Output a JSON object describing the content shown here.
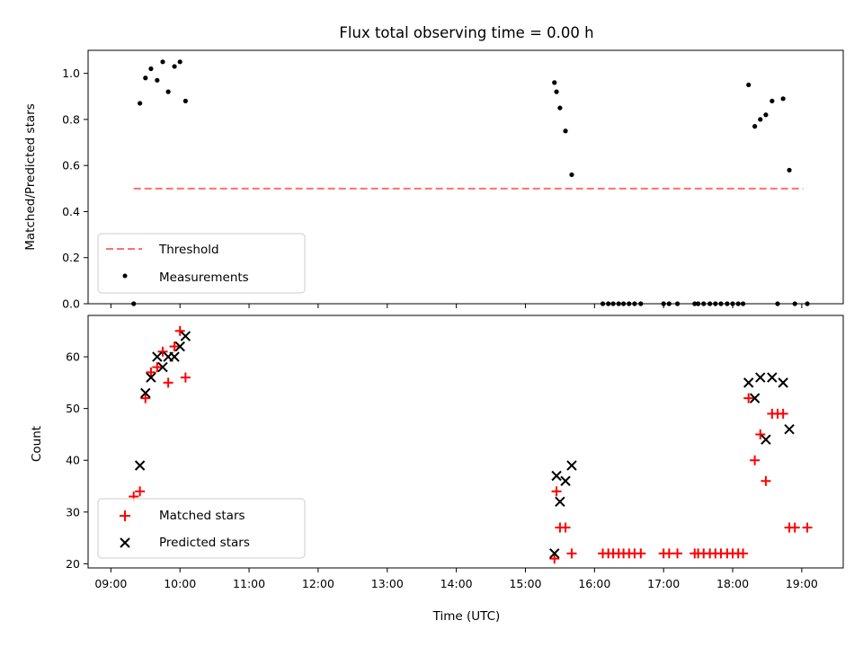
{
  "chart_data": [
    {
      "type": "scatter",
      "title": "Flux total observing time = 0.00 h",
      "ylabel": "Matched/Predicted stars",
      "xlabel": "",
      "xlim": [
        8.67,
        19.6
      ],
      "ylim": [
        0,
        1.1
      ],
      "yticks": [
        0.0,
        0.2,
        0.4,
        0.6,
        0.8,
        1.0
      ],
      "ytick_labels": [
        "0.0",
        "0.2",
        "0.4",
        "0.6",
        "0.8",
        "1.0"
      ],
      "threshold": {
        "name": "Threshold",
        "value": 0.5,
        "x_range": [
          9.33,
          19.02
        ],
        "color": "#ff7070"
      },
      "series": [
        {
          "name": "Measurements",
          "marker": "dot",
          "color": "#000000",
          "x": [
            9.33,
            9.42,
            9.5,
            9.58,
            9.67,
            9.75,
            9.83,
            9.92,
            10.0,
            10.08,
            15.42,
            15.45,
            15.5,
            15.58,
            15.67,
            16.12,
            16.2,
            16.27,
            16.35,
            16.42,
            16.5,
            16.58,
            16.67,
            17.0,
            17.08,
            17.2,
            17.45,
            17.5,
            17.58,
            17.67,
            17.75,
            17.83,
            17.92,
            18.0,
            18.08,
            18.15,
            18.23,
            18.32,
            18.4,
            18.48,
            18.57,
            18.65,
            18.73,
            18.82,
            18.9,
            19.08
          ],
          "y": [
            0.0,
            0.87,
            0.98,
            1.02,
            0.97,
            1.05,
            0.92,
            1.03,
            1.05,
            0.88,
            0.96,
            0.92,
            0.85,
            0.75,
            0.56,
            0.0,
            0.0,
            0.0,
            0.0,
            0.0,
            0.0,
            0.0,
            0.0,
            0.0,
            0.0,
            0.0,
            0.0,
            0.0,
            0.0,
            0.0,
            0.0,
            0.0,
            0.0,
            0.0,
            0.0,
            0.0,
            0.95,
            0.77,
            0.8,
            0.82,
            0.88,
            0.0,
            0.89,
            0.58,
            0.0,
            0.0
          ]
        }
      ]
    },
    {
      "type": "scatter",
      "title": "",
      "ylabel": "Count",
      "xlabel": "Time (UTC)",
      "xlim": [
        8.67,
        19.6
      ],
      "ylim": [
        19.2,
        68
      ],
      "yticks": [
        20,
        30,
        40,
        50,
        60
      ],
      "ytick_labels": [
        "20",
        "30",
        "40",
        "50",
        "60"
      ],
      "xticks": [
        9,
        10,
        11,
        12,
        13,
        14,
        15,
        16,
        17,
        18,
        19
      ],
      "xtick_labels": [
        "09:00",
        "10:00",
        "11:00",
        "12:00",
        "13:00",
        "14:00",
        "15:00",
        "16:00",
        "17:00",
        "18:00",
        "19:00"
      ],
      "series": [
        {
          "name": "Matched stars",
          "marker": "plus",
          "color": "#ff0000",
          "x": [
            9.33,
            9.42,
            9.5,
            9.58,
            9.67,
            9.75,
            9.83,
            9.92,
            10.0,
            10.08,
            15.42,
            15.45,
            15.5,
            15.58,
            15.67,
            16.12,
            16.2,
            16.27,
            16.35,
            16.42,
            16.5,
            16.58,
            16.67,
            17.0,
            17.08,
            17.2,
            17.45,
            17.5,
            17.58,
            17.67,
            17.75,
            17.83,
            17.92,
            18.0,
            18.08,
            18.15,
            18.23,
            18.32,
            18.4,
            18.48,
            18.57,
            18.65,
            18.73,
            18.82,
            18.9,
            19.08
          ],
          "y": [
            33,
            34,
            52,
            57,
            58,
            61,
            55,
            62,
            65,
            56,
            21,
            34,
            27,
            27,
            22,
            22,
            22,
            22,
            22,
            22,
            22,
            22,
            22,
            22,
            22,
            22,
            22,
            22,
            22,
            22,
            22,
            22,
            22,
            22,
            22,
            22,
            52,
            40,
            45,
            36,
            49,
            49,
            49,
            27,
            27,
            27
          ]
        },
        {
          "name": "Predicted stars",
          "marker": "x",
          "color": "#000000",
          "x": [
            9.42,
            9.5,
            9.58,
            9.67,
            9.75,
            9.83,
            9.92,
            10.0,
            10.08,
            15.42,
            15.45,
            15.5,
            15.58,
            15.67,
            18.23,
            18.32,
            18.4,
            18.48,
            18.57,
            18.73,
            18.82
          ],
          "y": [
            39,
            53,
            56,
            60,
            58,
            60,
            60,
            62,
            64,
            22,
            37,
            32,
            36,
            39,
            55,
            52,
            56,
            44,
            56,
            55,
            46
          ]
        }
      ]
    }
  ]
}
